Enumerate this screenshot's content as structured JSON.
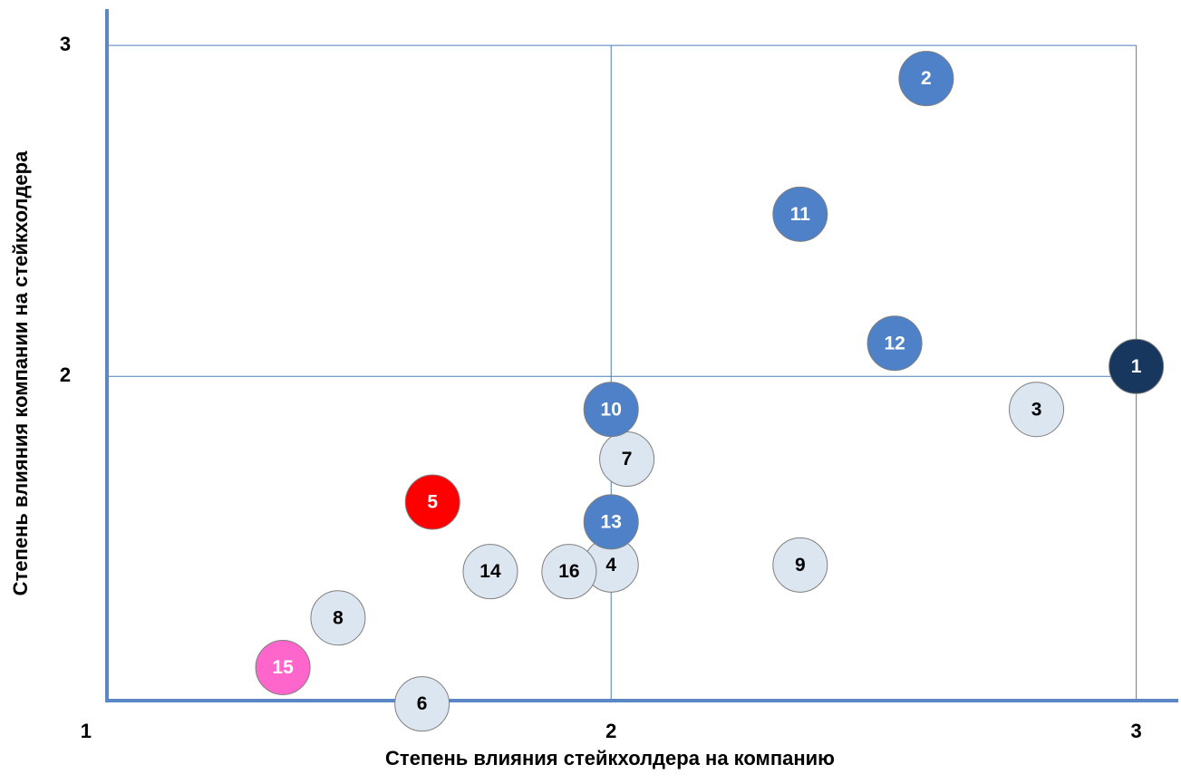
{
  "chart_data": {
    "type": "scatter",
    "x_label": "Степень  влияния стейкхолдера на компанию",
    "y_label": "Степень влияния  компании на стейкхолдера",
    "point_labels": [
      "1",
      "2",
      "3",
      "4",
      "5",
      "6",
      "7",
      "8",
      "9",
      "10",
      "11",
      "12",
      "13",
      "14",
      "15",
      "16"
    ],
    "x": [
      3.0,
      2.6,
      2.81,
      2.0,
      1.66,
      1.64,
      2.03,
      1.48,
      2.36,
      2.0,
      2.36,
      2.54,
      2.0,
      1.77,
      1.375,
      1.92
    ],
    "values": [
      2.03,
      2.9,
      1.9,
      1.43,
      1.62,
      1.01,
      1.75,
      1.27,
      1.43,
      1.9,
      2.49,
      2.1,
      1.56,
      1.41,
      1.12,
      1.41
    ],
    "colors": [
      "#17375e",
      "#4f81c9",
      "#dce6f1",
      "#dce6f1",
      "#ff0000",
      "#dce6f1",
      "#dce6f1",
      "#dce6f1",
      "#dce6f1",
      "#4f81c9",
      "#4f81c9",
      "#4f81c9",
      "#4f81c9",
      "#dce6f1",
      "#ff66cc",
      "#dce6f1"
    ],
    "label_colors": [
      "#ffffff",
      "#ffffff",
      "#000000",
      "#000000",
      "#ffffff",
      "#000000",
      "#000000",
      "#000000",
      "#000000",
      "#ffffff",
      "#ffffff",
      "#ffffff",
      "#ffffff",
      "#000000",
      "#ffffff",
      "#000000"
    ],
    "xlim": [
      1.04,
      3.08
    ],
    "ylim": [
      1.02,
      3.11
    ],
    "xticks": [
      1,
      2,
      3
    ],
    "yticks": [
      2,
      3
    ],
    "grid": true,
    "grid_color": "#4a7ebb",
    "axis_color": "#5b87c5"
  }
}
